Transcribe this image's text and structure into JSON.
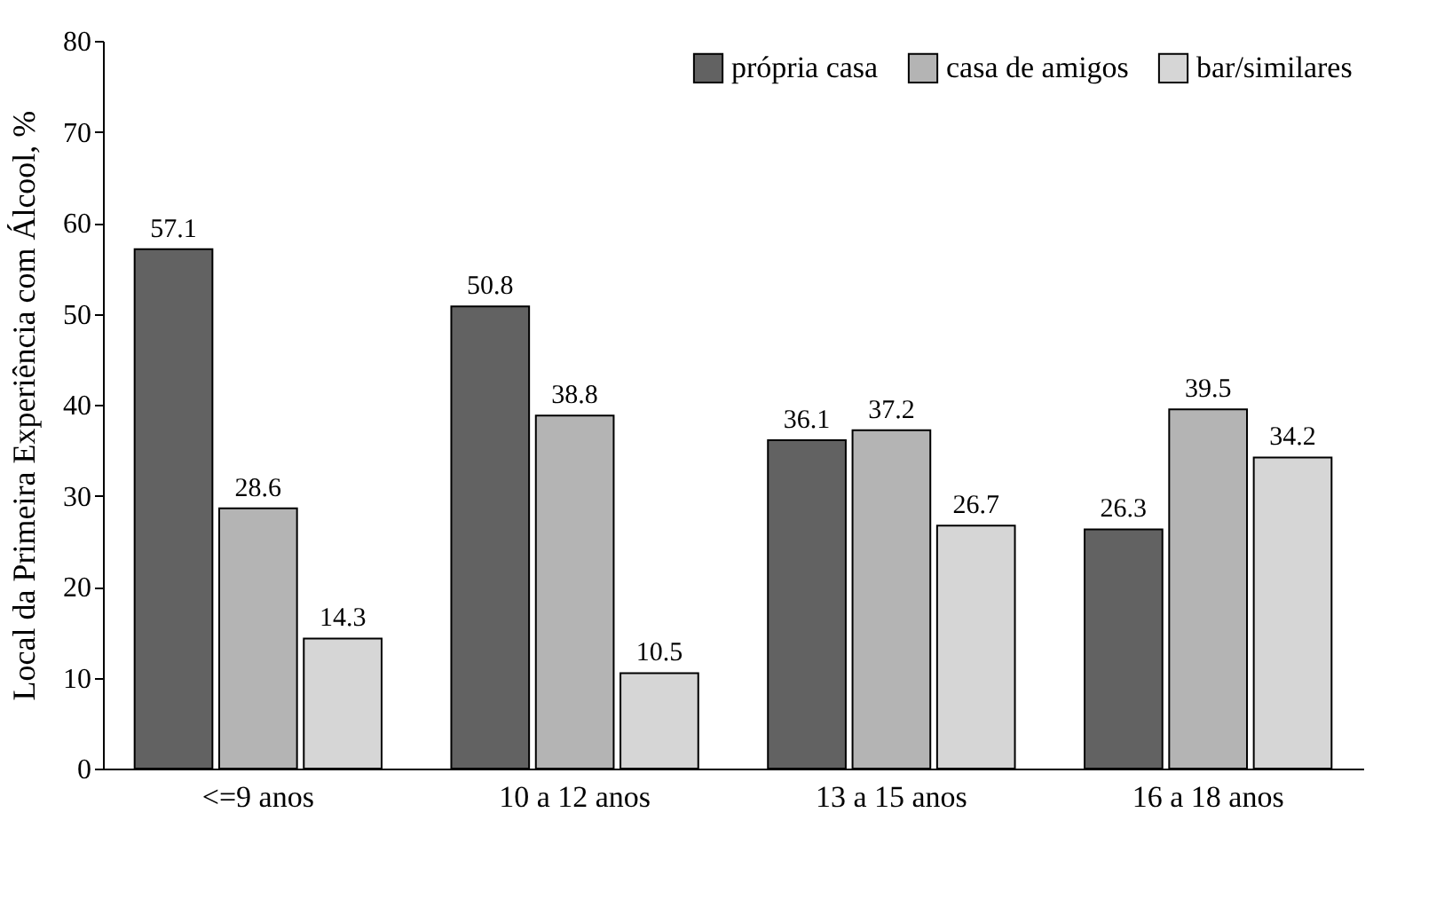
{
  "chart_data": {
    "type": "bar",
    "ylabel": "Local da Primeira Experiência com Álcool, %",
    "categories": [
      "<=9 anos",
      "10 a 12 anos",
      "13 a 15 anos",
      "16 a 18 anos"
    ],
    "series": [
      {
        "name": "própria casa",
        "color": "#626262",
        "values": [
          57.1,
          50.8,
          36.1,
          26.3
        ]
      },
      {
        "name": "casa de amigos",
        "color": "#b4b4b4",
        "values": [
          28.6,
          38.8,
          37.2,
          39.5
        ]
      },
      {
        "name": "bar/similares",
        "color": "#d6d6d6",
        "values": [
          14.3,
          10.5,
          26.7,
          34.2
        ]
      }
    ],
    "ylim": [
      0,
      80
    ],
    "yticks": [
      0,
      10,
      20,
      30,
      40,
      50,
      60,
      70,
      80
    ],
    "grid": false,
    "legend": "top right",
    "data_labels": true
  }
}
